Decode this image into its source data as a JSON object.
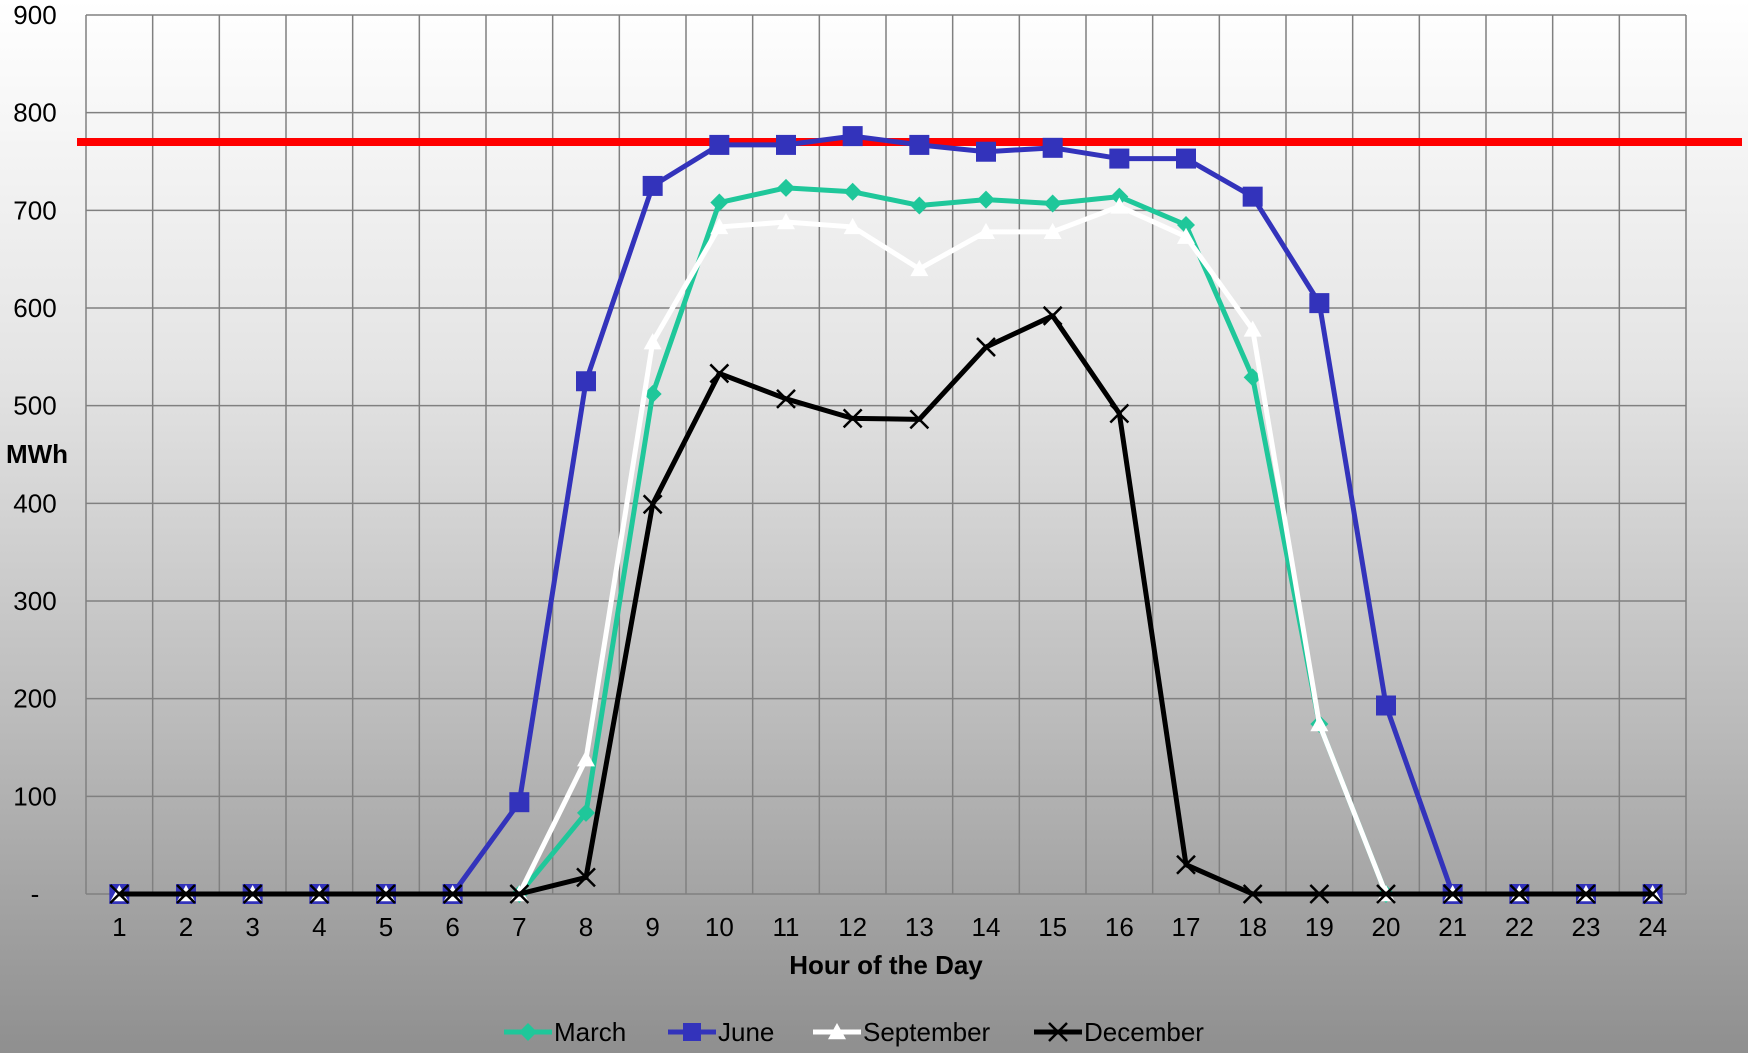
{
  "chart_data": {
    "type": "line",
    "title": "",
    "xlabel": "Hour of the Day",
    "ylabel": "MWh",
    "x": [
      1,
      2,
      3,
      4,
      5,
      6,
      7,
      8,
      9,
      10,
      11,
      12,
      13,
      14,
      15,
      16,
      17,
      18,
      19,
      20,
      21,
      22,
      23,
      24
    ],
    "ylim": [
      0,
      900
    ],
    "yticks": [
      {
        "value": 0,
        "label": "-"
      },
      {
        "value": 100,
        "label": "100"
      },
      {
        "value": 200,
        "label": "200"
      },
      {
        "value": 300,
        "label": "300"
      },
      {
        "value": 400,
        "label": "400"
      },
      {
        "value": 500,
        "label": "500"
      },
      {
        "value": 600,
        "label": "600"
      },
      {
        "value": 700,
        "label": "700"
      },
      {
        "value": 800,
        "label": "800"
      },
      {
        "value": 900,
        "label": "900"
      }
    ],
    "grid": true,
    "legend_position": "bottom",
    "reference_line": {
      "value": 770,
      "color": "#ff0000"
    },
    "series": [
      {
        "name": "March",
        "color": "#1fc79a",
        "marker": "diamond",
        "values": [
          0,
          0,
          0,
          0,
          0,
          0,
          0,
          83,
          512,
          708,
          723,
          719,
          705,
          711,
          707,
          714,
          685,
          529,
          174,
          0,
          0,
          0,
          0,
          0
        ]
      },
      {
        "name": "June",
        "color": "#3333bb",
        "marker": "square",
        "values": [
          0,
          0,
          0,
          0,
          0,
          0,
          94,
          525,
          725,
          767,
          767,
          776,
          767,
          760,
          764,
          753,
          753,
          714,
          605,
          193,
          0,
          0,
          0,
          0
        ]
      },
      {
        "name": "September",
        "color": "#ffffff",
        "marker": "triangle",
        "values": [
          0,
          0,
          0,
          0,
          0,
          0,
          0,
          138,
          565,
          683,
          688,
          683,
          640,
          678,
          678,
          704,
          673,
          578,
          174,
          0,
          0,
          0,
          0,
          0
        ]
      },
      {
        "name": "December",
        "color": "#000000",
        "marker": "x",
        "values": [
          0,
          0,
          0,
          0,
          0,
          0,
          0,
          17,
          399,
          533,
          507,
          487,
          486,
          560,
          592,
          492,
          30,
          0,
          0,
          0,
          0,
          0,
          0,
          0
        ]
      }
    ]
  }
}
